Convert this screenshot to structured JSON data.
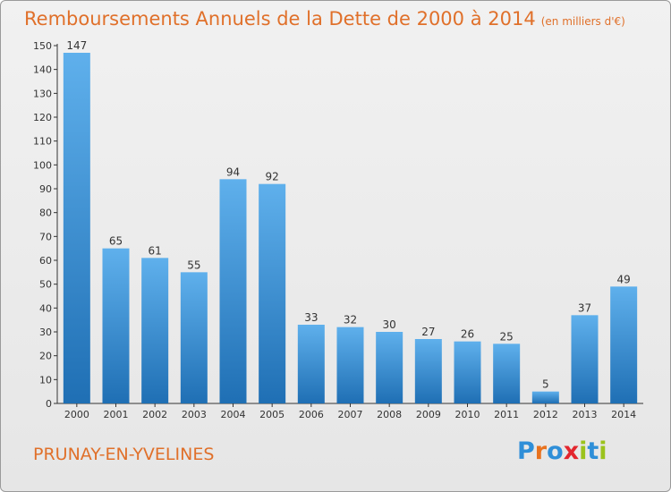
{
  "header": {
    "title": "Remboursements Annuels de la Dette de 2000 à 2014",
    "unit": "(en milliers d'€)"
  },
  "footer": {
    "commune": "PRUNAY-EN-YVELINES",
    "logo": "Proxiti",
    "logo_colors": [
      "#2f8fd8",
      "#e8731f",
      "#2f8fd8",
      "#e3262e",
      "#9bc31c",
      "#2f8fd8",
      "#9bc31c"
    ]
  },
  "colors": {
    "bar_top": "#5fb0ec",
    "bar_bottom": "#1f6fb4",
    "title": "#e0702a",
    "axis": "#333333"
  },
  "chart_data": {
    "type": "bar",
    "categories": [
      "2000",
      "2001",
      "2002",
      "2003",
      "2004",
      "2005",
      "2006",
      "2007",
      "2008",
      "2009",
      "2010",
      "2011",
      "2012",
      "2013",
      "2014"
    ],
    "values": [
      147,
      65,
      61,
      55,
      94,
      92,
      33,
      32,
      30,
      27,
      26,
      25,
      5,
      37,
      49
    ],
    "ylim": [
      0,
      150
    ],
    "yticks": [
      0,
      10,
      20,
      30,
      40,
      50,
      60,
      70,
      80,
      90,
      100,
      110,
      120,
      130,
      140,
      150
    ],
    "grid": false,
    "data_labels": true
  }
}
